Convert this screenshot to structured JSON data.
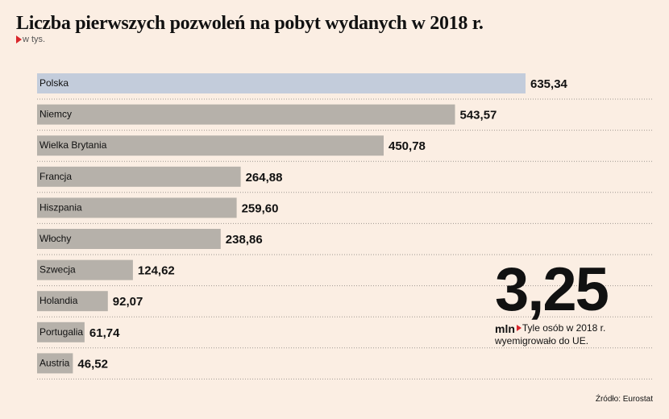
{
  "chart_data": {
    "type": "bar",
    "orientation": "horizontal",
    "title": "Liczba pierwszych pozwoleń na pobyt wydanych w 2018 r.",
    "subtitle": "w tys.",
    "categories": [
      "Polska",
      "Niemcy",
      "Wielka Brytania",
      "Francja",
      "Hiszpania",
      "Włochy",
      "Szwecja",
      "Holandia",
      "Portugalia",
      "Austria"
    ],
    "values": [
      635.34,
      543.57,
      450.78,
      264.88,
      259.6,
      238.86,
      124.62,
      92.07,
      61.74,
      46.52
    ],
    "value_labels": [
      "635,34",
      "543,57",
      "450,78",
      "264,88",
      "259,60",
      "238,86",
      "124,62",
      "92,07",
      "61,74",
      "46,52"
    ],
    "highlight_category": "Polska",
    "xlim": [
      0,
      635.34
    ],
    "colors": {
      "bar": "#b6b1aa",
      "highlight": "#c3ccdb",
      "gridline": "#9e9891",
      "background": "#fbeee3"
    }
  },
  "callout": {
    "value": "3,25",
    "unit": "mln",
    "desc_line1": "Tyle osób w 2018 r.",
    "desc_line2": "wyemigrowało do UE."
  },
  "source": "Źródło: Eurostat"
}
